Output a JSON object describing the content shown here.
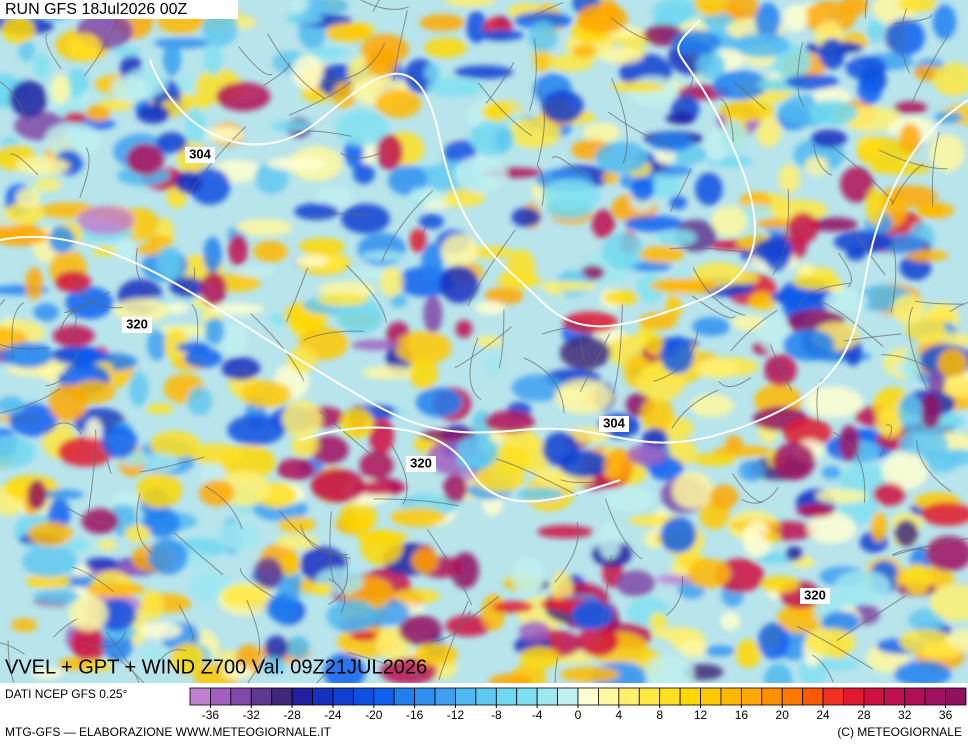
{
  "header": {
    "run": "RUN GFS 18Jul2026 00Z"
  },
  "map": {
    "title": "VVEL + GPT + WIND Z700 Val. 09Z21JUL2026",
    "contour_labels": [
      304,
      320,
      304,
      320,
      320
    ]
  },
  "footer": {
    "source": "DATI NCEP GFS 0.25°",
    "credit": "MTG-GFS — ELABORAZIONE WWW.METEOGIORNALE.IT",
    "copyright": "(C) METEOGIORNALE"
  },
  "colorbar": {
    "range": [
      -38,
      38
    ],
    "ticks": [
      -36,
      -32,
      -28,
      -24,
      -20,
      -16,
      -12,
      -8,
      -4,
      0,
      4,
      8,
      12,
      16,
      20,
      24,
      28,
      32,
      36
    ],
    "colors": [
      "#c080d0",
      "#a060c0",
      "#8048a8",
      "#603890",
      "#402878",
      "#2020a0",
      "#1830c0",
      "#1040d0",
      "#1050e0",
      "#1060f0",
      "#2080f0",
      "#3090f0",
      "#40a0f0",
      "#50b8f0",
      "#60c8f0",
      "#70d8f0",
      "#80e0f0",
      "#a0e8f0",
      "#c0f0f0",
      "#ffffd0",
      "#fff8a0",
      "#fff070",
      "#ffe840",
      "#ffe020",
      "#ffd800",
      "#ffc800",
      "#ffb800",
      "#ffa800",
      "#ff9000",
      "#ff7800",
      "#ff5800",
      "#f03020",
      "#e01830",
      "#d01040",
      "#c01050",
      "#b01058",
      "#a01060",
      "#901060"
    ]
  }
}
